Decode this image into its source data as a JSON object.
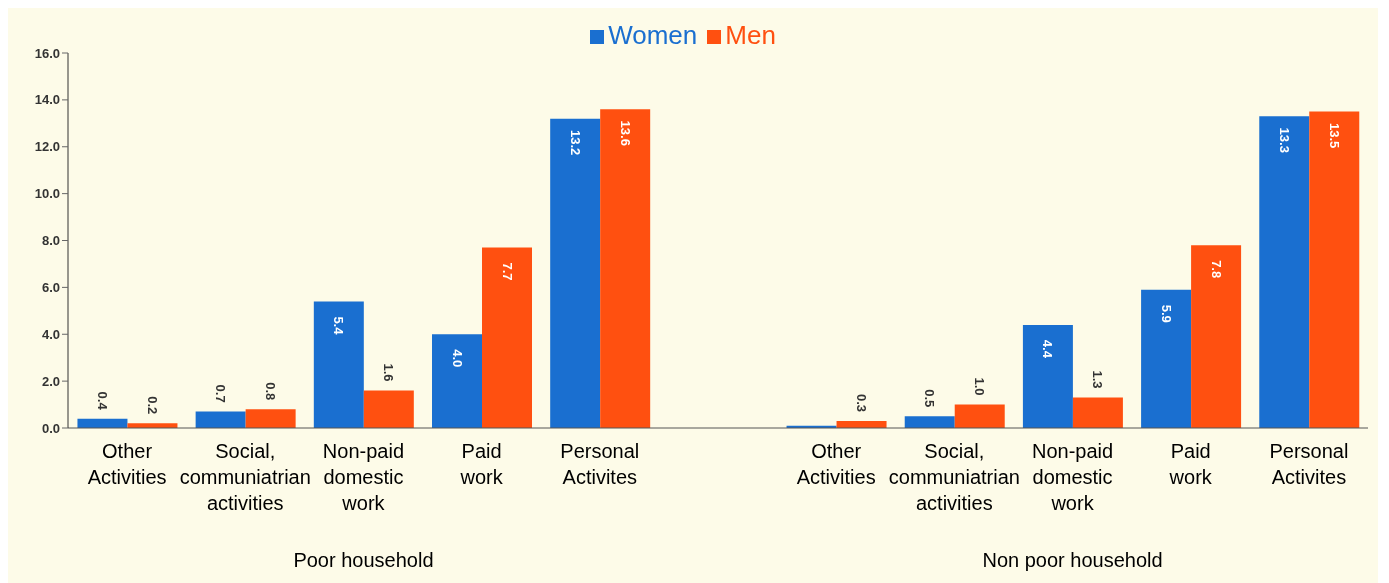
{
  "chart_data": {
    "type": "bar",
    "categories": [
      "Other Activities",
      "Social, communiatrian activities",
      "Non-paid domestic work",
      "Paid work",
      "Personal Activites",
      null,
      "Other Activities",
      "Social, communiatrian activities",
      "Non-paid domestic work",
      "Paid work",
      "Personal Activites"
    ],
    "annotations": [
      "Poor household",
      "Non poor household"
    ],
    "series": [
      {
        "name": "Women",
        "color": "#1a6fd0",
        "values": [
          0.4,
          0.7,
          5.4,
          4.0,
          13.2,
          null,
          0.1,
          0.5,
          4.4,
          5.9,
          13.3
        ],
        "value_labels": [
          "0.4",
          "0.7",
          "5.4",
          "4.0",
          "13.2",
          null,
          null,
          "0.5",
          "4.4",
          "5.9",
          "13.3"
        ]
      },
      {
        "name": "Men",
        "color": "#ff5010",
        "values": [
          0.2,
          0.8,
          1.6,
          7.7,
          13.6,
          null,
          0.3,
          1.0,
          1.3,
          7.8,
          13.5
        ],
        "value_labels": [
          "0.2",
          "0.8",
          "1.6",
          "7.7",
          "13.6",
          null,
          "0.3",
          "1.0",
          "1.3",
          "7.8",
          "13.5"
        ]
      }
    ],
    "ylim": [
      0,
      16
    ],
    "yticks": [
      {
        "value": 0,
        "label": "0.0"
      },
      {
        "value": 2,
        "label": "2.0"
      },
      {
        "value": 4,
        "label": "4.0"
      },
      {
        "value": 6,
        "label": "6.0"
      },
      {
        "value": 8,
        "label": "8.0"
      },
      {
        "value": 10,
        "label": "10.0"
      },
      {
        "value": 12,
        "label": "12.0"
      },
      {
        "value": 14,
        "label": "14.0"
      },
      {
        "value": 16,
        "label": "16.0"
      }
    ],
    "grid": false,
    "legend": "top"
  }
}
